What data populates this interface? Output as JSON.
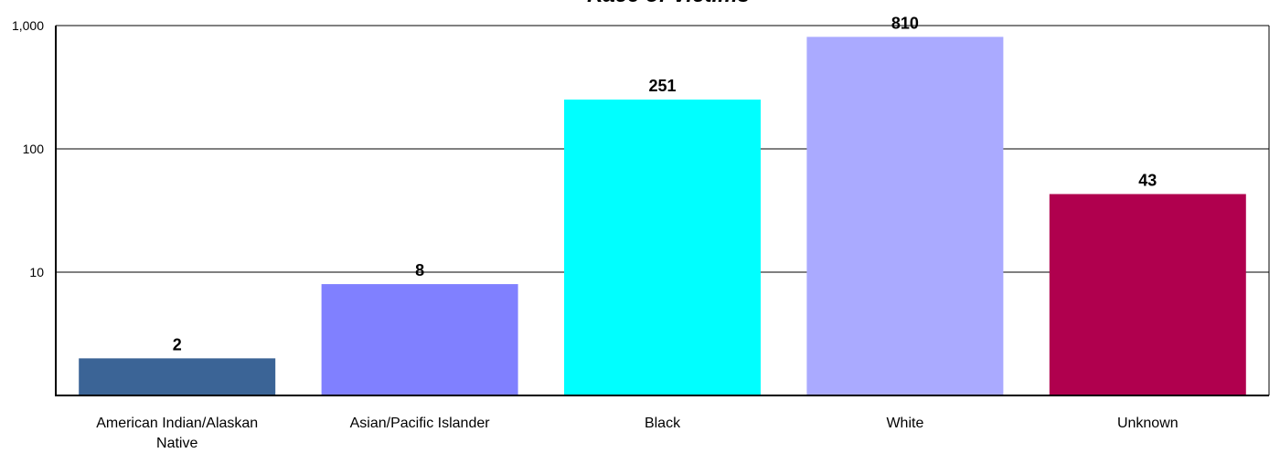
{
  "chart_data": {
    "type": "bar",
    "title": "Race of Victims",
    "yscale": "log",
    "ylim": [
      1,
      1000
    ],
    "yticks": [
      10,
      100,
      1000
    ],
    "ytick_labels": [
      "10",
      "100",
      "1,000"
    ],
    "grid": true,
    "categories": [
      "American Indian/Alaskan Native",
      "Asian/Pacific Islander",
      "Black",
      "White",
      "Unknown"
    ],
    "category_lines": [
      [
        "American Indian/Alaskan",
        "Native"
      ],
      [
        "Asian/Pacific Islander"
      ],
      [
        "Black"
      ],
      [
        "White"
      ],
      [
        "Unknown"
      ]
    ],
    "values": [
      2,
      8,
      251,
      810,
      43
    ],
    "data_labels": [
      "2",
      "8",
      "251",
      "810",
      "43"
    ],
    "colors": [
      "#3B6496",
      "#8080FF",
      "#00FFFF",
      "#AAAAFF",
      "#B0004E"
    ]
  }
}
